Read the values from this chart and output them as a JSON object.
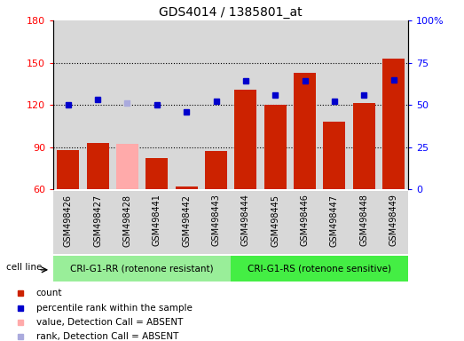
{
  "title": "GDS4014 / 1385801_at",
  "samples": [
    "GSM498426",
    "GSM498427",
    "GSM498428",
    "GSM498441",
    "GSM498442",
    "GSM498443",
    "GSM498444",
    "GSM498445",
    "GSM498446",
    "GSM498447",
    "GSM498448",
    "GSM498449"
  ],
  "counts": [
    88,
    93,
    92,
    82,
    62,
    87,
    131,
    120,
    143,
    108,
    121,
    153
  ],
  "ranks": [
    50,
    53,
    51,
    50,
    46,
    52,
    64,
    56,
    64,
    52,
    56,
    65
  ],
  "absent": [
    false,
    false,
    true,
    false,
    false,
    false,
    false,
    false,
    false,
    false,
    false,
    false
  ],
  "group1_label": "CRI-G1-RR (rotenone resistant)",
  "group2_label": "CRI-G1-RS (rotenone sensitive)",
  "ylim_left": [
    60,
    180
  ],
  "ylim_right": [
    0,
    100
  ],
  "yticks_left": [
    60,
    90,
    120,
    150,
    180
  ],
  "yticks_right": [
    0,
    25,
    50,
    75,
    100
  ],
  "bar_color": "#cc2200",
  "bar_color_absent": "#ffaaaa",
  "rank_color": "#0000cc",
  "rank_color_absent": "#aaaadd",
  "bg_color": "#d8d8d8",
  "group1_color": "#99ee99",
  "group2_color": "#44ee44",
  "cell_line_label": "cell line",
  "legend_items": [
    {
      "label": "count",
      "color": "#cc2200"
    },
    {
      "label": "percentile rank within the sample",
      "color": "#0000cc"
    },
    {
      "label": "value, Detection Call = ABSENT",
      "color": "#ffaaaa"
    },
    {
      "label": "rank, Detection Call = ABSENT",
      "color": "#aaaadd"
    }
  ]
}
